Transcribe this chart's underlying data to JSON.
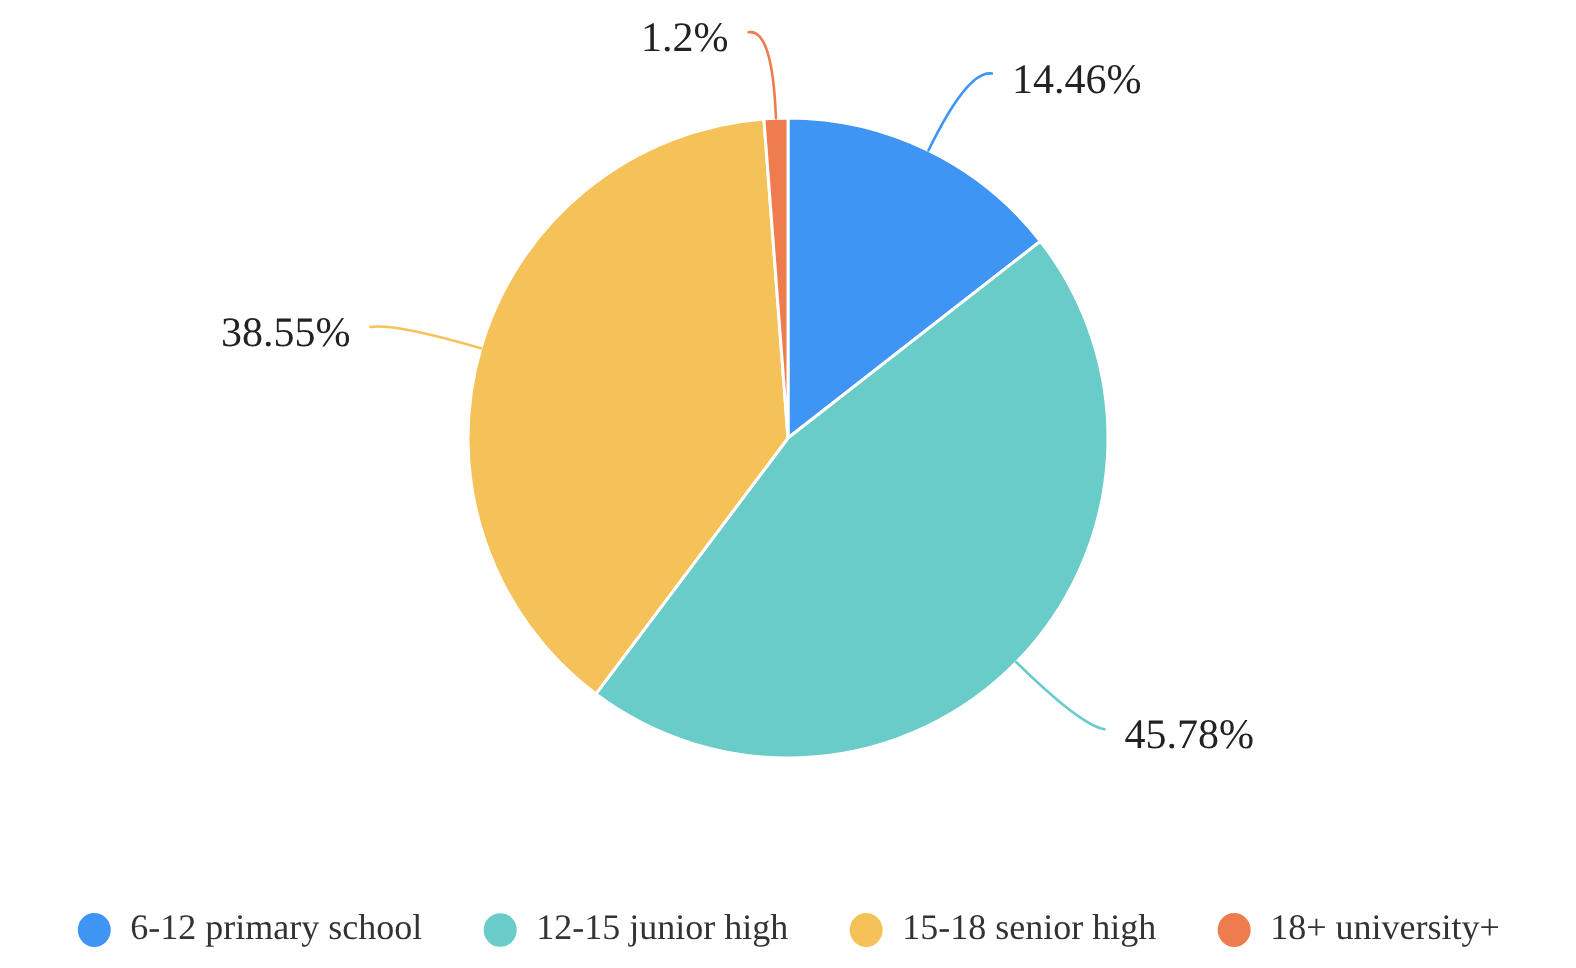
{
  "chart_data": {
    "type": "pie",
    "categories": [
      "6-12 primary school",
      "12-15 junior high",
      "15-18 senior high",
      "18+ university+"
    ],
    "values": [
      14.46,
      45.78,
      38.55,
      1.2
    ],
    "colors": [
      "#3f95f4",
      "#6accc8",
      "#f5c25a",
      "#ee7c4e"
    ],
    "value_labels": [
      "14.46%",
      "45.78%",
      "38.55%",
      "1.2%"
    ],
    "legend": "bottom"
  }
}
